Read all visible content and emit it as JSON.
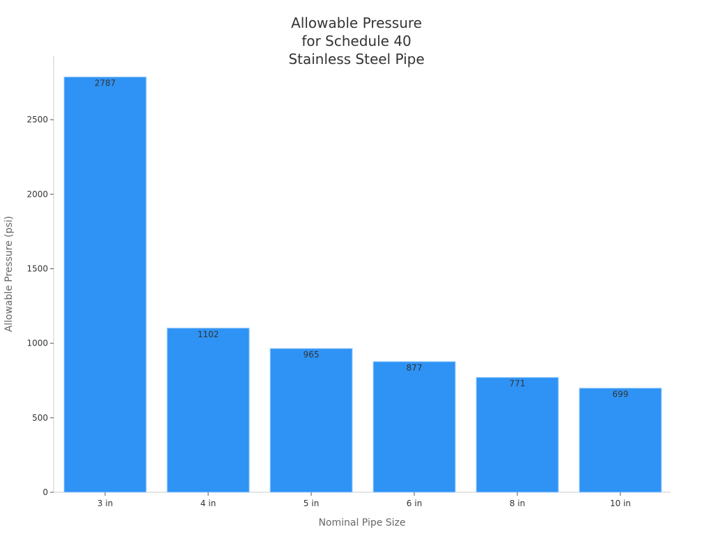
{
  "chart_data": {
    "type": "bar",
    "title_lines": [
      "Allowable Pressure",
      "for Schedule 40",
      "Stainless Steel Pipe"
    ],
    "xlabel": "Nominal Pipe Size",
    "ylabel": "Allowable Pressure (psi)",
    "categories": [
      "3 in",
      "4 in",
      "5 in",
      "6 in",
      "8 in",
      "10 in"
    ],
    "values": [
      2787,
      1102,
      965,
      877,
      771,
      699
    ],
    "y_ticks": [
      0,
      500,
      1000,
      1500,
      2000,
      2500
    ],
    "ylim": [
      0,
      2930
    ],
    "bar_color": "#2e93f5",
    "grid": false,
    "legend": "none"
  }
}
